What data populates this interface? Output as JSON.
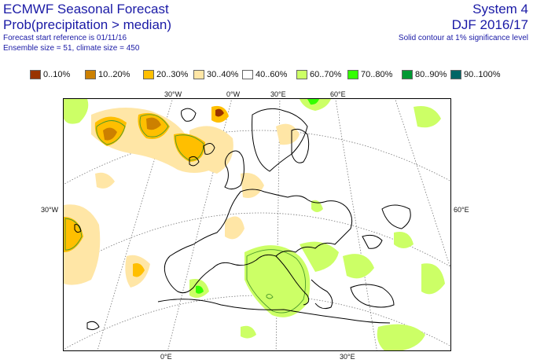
{
  "header": {
    "title": "ECMWF Seasonal Forecast",
    "subtitle": "Prob(precipitation > median)",
    "start_ref": "Forecast start reference is 01/11/16",
    "ensemble": "Ensemble size = 51, climate size = 450",
    "system": "System 4",
    "season": "DJF 2016/17",
    "note": "Solid contour at 1% significance level"
  },
  "legend": [
    {
      "label": "0..10%",
      "color": "#993300"
    },
    {
      "label": "10..20%",
      "color": "#cc8000"
    },
    {
      "label": "20..30%",
      "color": "#ffbf00"
    },
    {
      "label": "30..40%",
      "color": "#ffe6a6"
    },
    {
      "label": "40..60%",
      "color": "#ffffff"
    },
    {
      "label": "60..70%",
      "color": "#ccff66"
    },
    {
      "label": "70..80%",
      "color": "#33ff00"
    },
    {
      "label": "80..90%",
      "color": "#009933"
    },
    {
      "label": "90..100%",
      "color": "#006666"
    }
  ],
  "axes": {
    "top": [
      "30°W",
      "0°W",
      "30°E",
      "60°E"
    ],
    "bottom": [
      "0°E",
      "30°E"
    ],
    "left": [
      "30°W"
    ],
    "right": [
      "60°E"
    ]
  }
}
